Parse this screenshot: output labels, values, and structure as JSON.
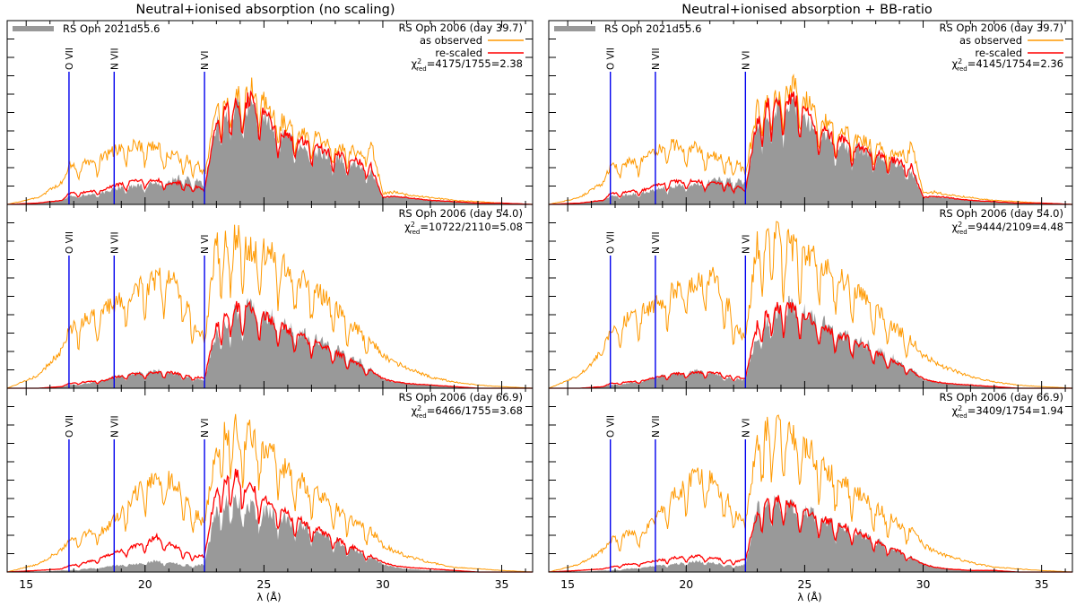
{
  "colors": {
    "reference_fill": "#999999",
    "observed": "#ff9900",
    "rescaled": "#ff0000",
    "ion_marker": "#0000ee",
    "axis": "#000000"
  },
  "chart_data": {
    "type": "area",
    "figure_description_axes": {
      "xlabel": "λ (Å)",
      "xlim": [
        14.2,
        36.3
      ],
      "x_ticks": [
        15,
        20,
        25,
        30,
        35
      ],
      "x_minor_step": 1,
      "y_axis_labels_shown": false
    },
    "ion_lines": [
      {
        "label": "O VII",
        "wavelength": 16.8
      },
      {
        "label": "N VII",
        "wavelength": 18.7
      },
      {
        "label": "N VI",
        "wavelength": 22.5
      }
    ],
    "legend": {
      "reference": "RS Oph 2021d55.6",
      "observed": "as observed",
      "rescaled": "re-scaled"
    },
    "chi_symbol": "χ",
    "chi_sup": "2",
    "chi_sub": "red",
    "columns": [
      {
        "title": "Neutral+ionised absorption (no scaling)",
        "panels": [
          {
            "epoch": "RS Oph 2006 (day 39.7)",
            "chi2": "=4175/1755=2.38",
            "ylim": [
              0,
              1
            ]
          },
          {
            "epoch": "RS Oph 2006 (day 54.0)",
            "chi2": "=10722/2110=5.08",
            "ylim": [
              0,
              1
            ]
          },
          {
            "epoch": "RS Oph 2006 (day 66.9)",
            "chi2": "=6466/1755=3.68",
            "ylim": [
              0,
              1
            ]
          }
        ]
      },
      {
        "title": "Neutral+ionised absorption + BB-ratio",
        "panels": [
          {
            "epoch": "RS Oph 2006 (day 39.7)",
            "chi2": "=4145/1754=2.36",
            "ylim": [
              0,
              1
            ]
          },
          {
            "epoch": "RS Oph 2006 (day 54.0)",
            "chi2": "=9444/2109=4.48",
            "ylim": [
              0,
              1
            ]
          },
          {
            "epoch": "RS Oph 2006 (day 66.9)",
            "chi2": "=3409/1754=1.94",
            "ylim": [
              0,
              1
            ]
          }
        ]
      }
    ],
    "series_envelopes": {
      "note": "Approximate smoothed envelopes (normalized flux, fraction of panel height) read from the spectra; fine absorption structure is added procedurally.",
      "x": [
        14.2,
        15.5,
        16.5,
        16.8,
        17.5,
        18.3,
        18.7,
        19.5,
        20.5,
        21.0,
        21.5,
        22.2,
        22.5,
        23.0,
        23.5,
        24.0,
        24.5,
        25.0,
        25.5,
        26.0,
        27.0,
        28.0,
        29.0,
        29.5,
        30.0,
        30.5,
        31.0,
        32.0,
        33.0,
        34.0,
        35.0,
        36.3
      ],
      "day_39_7": {
        "reference": [
          0.0,
          0.01,
          0.03,
          0.06,
          0.07,
          0.09,
          0.11,
          0.13,
          0.15,
          0.17,
          0.2,
          0.17,
          0.14,
          0.6,
          0.72,
          0.72,
          0.74,
          0.66,
          0.53,
          0.5,
          0.4,
          0.36,
          0.29,
          0.25,
          0.05,
          0.06,
          0.05,
          0.03,
          0.02,
          0.01,
          0.01,
          0.0
        ],
        "observed": [
          0.0,
          0.05,
          0.16,
          0.28,
          0.3,
          0.35,
          0.39,
          0.44,
          0.42,
          0.36,
          0.35,
          0.3,
          0.22,
          0.7,
          0.8,
          0.81,
          0.86,
          0.76,
          0.65,
          0.58,
          0.5,
          0.42,
          0.38,
          0.45,
          0.08,
          0.09,
          0.07,
          0.05,
          0.03,
          0.02,
          0.01,
          0.0
        ],
        "rescaled": [
          0.0,
          0.01,
          0.03,
          0.08,
          0.09,
          0.11,
          0.14,
          0.17,
          0.18,
          0.15,
          0.16,
          0.13,
          0.1,
          0.62,
          0.74,
          0.74,
          0.77,
          0.68,
          0.55,
          0.52,
          0.43,
          0.37,
          0.31,
          0.28,
          0.05,
          0.06,
          0.05,
          0.03,
          0.02,
          0.01,
          0.01,
          0.0
        ],
        "rescaled_alt": [
          0.0,
          0.01,
          0.03,
          0.08,
          0.09,
          0.11,
          0.14,
          0.17,
          0.17,
          0.15,
          0.16,
          0.13,
          0.1,
          0.63,
          0.75,
          0.76,
          0.78,
          0.69,
          0.55,
          0.52,
          0.43,
          0.37,
          0.31,
          0.28,
          0.05,
          0.06,
          0.05,
          0.03,
          0.02,
          0.01,
          0.01,
          0.0
        ]
      },
      "day_54_0": {
        "reference": [
          0.0,
          0.0,
          0.01,
          0.02,
          0.03,
          0.05,
          0.07,
          0.09,
          0.11,
          0.1,
          0.08,
          0.06,
          0.05,
          0.34,
          0.44,
          0.5,
          0.52,
          0.48,
          0.43,
          0.39,
          0.32,
          0.25,
          0.17,
          0.12,
          0.06,
          0.04,
          0.03,
          0.02,
          0.01,
          0.0,
          0.0,
          0.0
        ],
        "observed": [
          0.0,
          0.08,
          0.24,
          0.36,
          0.44,
          0.5,
          0.52,
          0.62,
          0.68,
          0.72,
          0.62,
          0.38,
          0.3,
          0.92,
          0.96,
          0.94,
          0.89,
          0.86,
          0.82,
          0.75,
          0.64,
          0.51,
          0.36,
          0.3,
          0.21,
          0.16,
          0.13,
          0.07,
          0.04,
          0.02,
          0.01,
          0.0
        ],
        "rescaled": [
          0.0,
          0.0,
          0.01,
          0.03,
          0.04,
          0.05,
          0.07,
          0.09,
          0.1,
          0.1,
          0.09,
          0.07,
          0.06,
          0.4,
          0.5,
          0.52,
          0.5,
          0.46,
          0.41,
          0.37,
          0.3,
          0.23,
          0.15,
          0.11,
          0.06,
          0.04,
          0.03,
          0.02,
          0.01,
          0.0,
          0.0,
          0.0
        ],
        "rescaled_alt": [
          0.0,
          0.0,
          0.01,
          0.03,
          0.04,
          0.05,
          0.07,
          0.09,
          0.1,
          0.1,
          0.09,
          0.07,
          0.06,
          0.4,
          0.5,
          0.52,
          0.5,
          0.46,
          0.41,
          0.37,
          0.3,
          0.23,
          0.15,
          0.11,
          0.06,
          0.04,
          0.03,
          0.02,
          0.01,
          0.0,
          0.0,
          0.0
        ]
      },
      "day_66_9": {
        "reference": [
          0.0,
          0.0,
          0.01,
          0.01,
          0.02,
          0.03,
          0.04,
          0.05,
          0.07,
          0.06,
          0.05,
          0.04,
          0.05,
          0.4,
          0.46,
          0.44,
          0.4,
          0.38,
          0.35,
          0.32,
          0.27,
          0.2,
          0.13,
          0.09,
          0.05,
          0.03,
          0.02,
          0.01,
          0.01,
          0.0,
          0.0,
          0.0
        ],
        "observed": [
          0.0,
          0.05,
          0.14,
          0.2,
          0.24,
          0.27,
          0.33,
          0.48,
          0.62,
          0.58,
          0.52,
          0.36,
          0.3,
          0.82,
          0.92,
          0.9,
          0.86,
          0.8,
          0.72,
          0.64,
          0.52,
          0.41,
          0.3,
          0.26,
          0.17,
          0.13,
          0.1,
          0.06,
          0.03,
          0.02,
          0.01,
          0.0
        ],
        "rescaled": [
          0.0,
          0.01,
          0.02,
          0.04,
          0.06,
          0.1,
          0.12,
          0.16,
          0.22,
          0.18,
          0.14,
          0.1,
          0.1,
          0.54,
          0.62,
          0.6,
          0.52,
          0.46,
          0.41,
          0.36,
          0.29,
          0.21,
          0.14,
          0.1,
          0.06,
          0.04,
          0.03,
          0.02,
          0.01,
          0.0,
          0.0,
          0.0
        ],
        "rescaled_alt": [
          0.0,
          0.01,
          0.02,
          0.03,
          0.05,
          0.06,
          0.07,
          0.09,
          0.1,
          0.09,
          0.08,
          0.07,
          0.08,
          0.38,
          0.46,
          0.45,
          0.42,
          0.38,
          0.35,
          0.32,
          0.27,
          0.2,
          0.13,
          0.09,
          0.05,
          0.03,
          0.02,
          0.01,
          0.01,
          0.0,
          0.0,
          0.0
        ]
      }
    }
  }
}
